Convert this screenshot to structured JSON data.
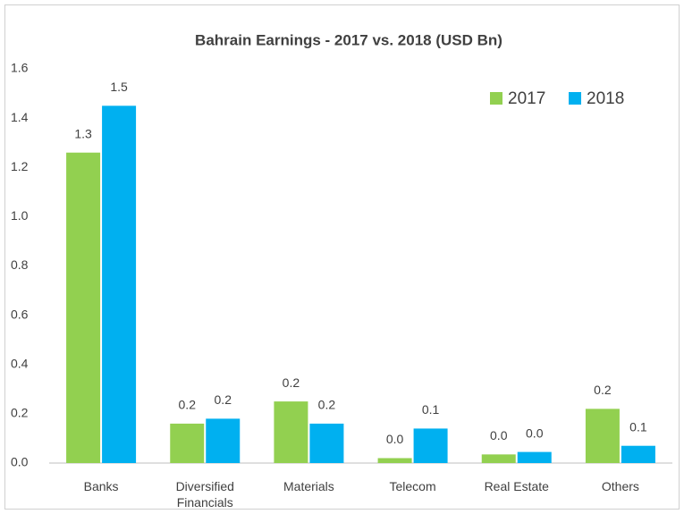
{
  "chart_data": {
    "type": "bar",
    "title": "Bahrain Earnings - 2017 vs. 2018 (USD Bn)",
    "categories": [
      "Banks",
      "Diversified Financials",
      "Materials",
      "Telecom",
      "Real Estate",
      "Others"
    ],
    "series": [
      {
        "name": "2017",
        "color": "#92d050",
        "values": [
          1.26,
          0.16,
          0.25,
          0.02,
          0.035,
          0.22
        ],
        "value_labels": [
          "1.3",
          "0.2",
          "0.2",
          "0.0",
          "0.0",
          "0.2"
        ]
      },
      {
        "name": "2018",
        "color": "#00b0f0",
        "values": [
          1.45,
          0.18,
          0.16,
          0.14,
          0.045,
          0.07
        ],
        "value_labels": [
          "1.5",
          "0.2",
          "0.2",
          "0.1",
          "0.0",
          "0.1"
        ]
      }
    ],
    "ylim": [
      0,
      1.6
    ],
    "yticks": [
      {
        "value": 0,
        "label": "0.0"
      },
      0.2,
      0.4,
      0.6,
      0.8,
      {
        "value": 1,
        "label": "1.0"
      },
      1.2,
      1.4,
      1.6
    ],
    "grid": false,
    "legend": "top-right"
  }
}
